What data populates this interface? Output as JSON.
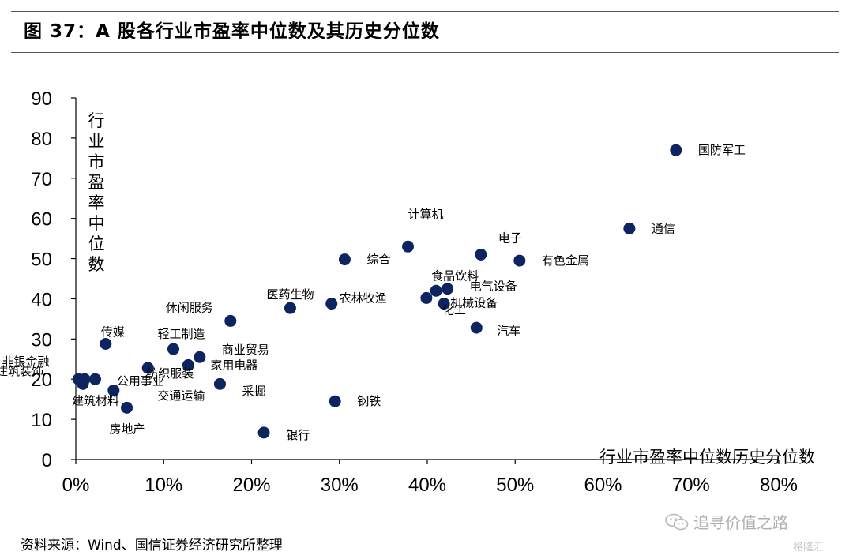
{
  "figure": {
    "title": "图 37：A 股各行业市盈率中位数及其历史分位数",
    "source": "资料来源：Wind、国信证券经济研究所整理",
    "watermark": "追寻价值之路",
    "logo": "格隆汇"
  },
  "chart_data": {
    "type": "scatter",
    "xlabel": "行业市盈率中位数历史分位数",
    "ylabel": "行业市盈率中位数",
    "xlim": [
      0,
      0.8
    ],
    "ylim": [
      0,
      90
    ],
    "x_ticks": [
      "0%",
      "10%",
      "20%",
      "30%",
      "40%",
      "50%",
      "60%",
      "70%",
      "80%"
    ],
    "y_ticks": [
      "0",
      "10",
      "20",
      "30",
      "40",
      "50",
      "60",
      "70",
      "80",
      "90"
    ],
    "grid": false,
    "marker_color": "#0d2461",
    "points": [
      {
        "label": "国防军工",
        "x": 0.683,
        "y": 77.0
      },
      {
        "label": "通信",
        "x": 0.63,
        "y": 57.5
      },
      {
        "label": "计算机",
        "x": 0.378,
        "y": 53.0
      },
      {
        "label": "电子",
        "x": 0.461,
        "y": 51.0
      },
      {
        "label": "有色金属",
        "x": 0.505,
        "y": 49.5
      },
      {
        "label": "综合",
        "x": 0.306,
        "y": 49.8
      },
      {
        "label": "食品饮料",
        "x": 0.41,
        "y": 42.0
      },
      {
        "label": "电气设备",
        "x": 0.423,
        "y": 42.5
      },
      {
        "label": "机械设备",
        "x": 0.419,
        "y": 38.8
      },
      {
        "label": "农林牧渔",
        "x": 0.291,
        "y": 38.8
      },
      {
        "label": "医药生物",
        "x": 0.244,
        "y": 37.7
      },
      {
        "label": "化工",
        "x": 0.399,
        "y": 40.2
      },
      {
        "label": "汽车",
        "x": 0.456,
        "y": 32.8
      },
      {
        "label": "休闲服务",
        "x": 0.176,
        "y": 34.5
      },
      {
        "label": "传媒",
        "x": 0.034,
        "y": 28.8
      },
      {
        "label": "轻工制造",
        "x": 0.111,
        "y": 27.5
      },
      {
        "label": "商业贸易",
        "x": 0.141,
        "y": 25.5
      },
      {
        "label": "家用电器",
        "x": 0.128,
        "y": 23.5
      },
      {
        "label": "纺织服装",
        "x": 0.082,
        "y": 22.8
      },
      {
        "label": "采掘",
        "x": 0.164,
        "y": 18.8
      },
      {
        "label": "非银金融",
        "x": 0.022,
        "y": 20.0
      },
      {
        "label": "建筑装饰",
        "x": 0.01,
        "y": 20.0
      },
      {
        "label": "公用事业",
        "x": 0.043,
        "y": 17.2
      },
      {
        "label": "建筑材料",
        "x": 0.008,
        "y": 18.8
      },
      {
        "label": "交通运输",
        "x": 0.003,
        "y": 20.0
      },
      {
        "label": "房地产",
        "x": 0.058,
        "y": 12.9
      },
      {
        "label": "钢铁",
        "x": 0.295,
        "y": 14.5
      },
      {
        "label": "银行",
        "x": 0.214,
        "y": 6.7
      }
    ]
  }
}
